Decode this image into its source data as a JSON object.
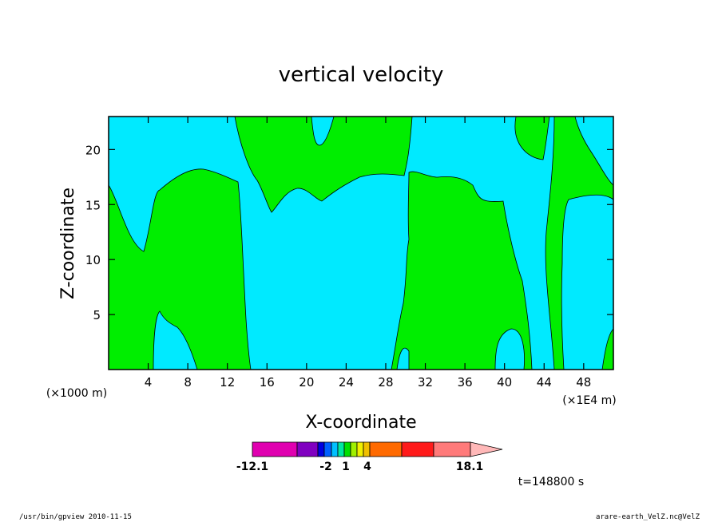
{
  "chart_data": {
    "type": "heatmap",
    "title": "vertical velocity",
    "xlabel": "X-coordinate",
    "ylabel": "Z-coordinate",
    "x_unit_label": "(×1000 m)",
    "x_extra_label": "(×1E4 m)",
    "xlim": [
      0,
      51
    ],
    "ylim": [
      0,
      23
    ],
    "x_ticks": [
      4,
      8,
      12,
      16,
      20,
      24,
      28,
      32,
      36,
      40,
      44,
      48
    ],
    "y_ticks": [
      5,
      10,
      15,
      20
    ],
    "contour_levels": [
      -12.1,
      -2,
      1,
      4,
      18.1
    ],
    "colorbar": {
      "labels": [
        "-12.1",
        "-2",
        "1",
        "4",
        "18.1"
      ],
      "colors": [
        "#e000b0",
        "#8000c0",
        "#0000e0",
        "#0060ff",
        "#00c0ff",
        "#00e8a0",
        "#00e000",
        "#a0f000",
        "#f0f000",
        "#f0c000",
        "#ff6a00",
        "#ff1a1a",
        "#ff7a7a",
        "#ffb8b8"
      ],
      "background_color": "#00eaff",
      "region_color": "#00ee00"
    },
    "time_label": "t=148800 s"
  },
  "footer": {
    "left": "/usr/bin/gpview   2010-11-15",
    "right": "arare-earth_VelZ.nc@VelZ"
  }
}
